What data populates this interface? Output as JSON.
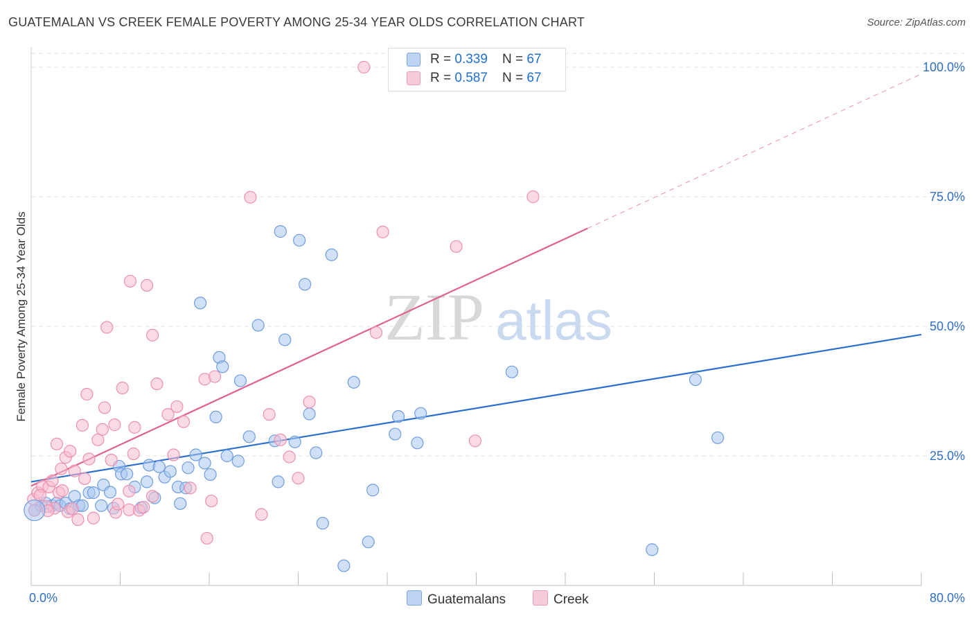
{
  "title": "GUATEMALAN VS CREEK FEMALE POVERTY AMONG 25-34 YEAR OLDS CORRELATION CHART",
  "source": "Source: ZipAtlas.com",
  "watermark": {
    "zip": "ZIP",
    "atlas": "atlas"
  },
  "legend": {
    "rows": [
      {
        "r_label": "R = ",
        "r_value": "0.339",
        "n_label": "N = ",
        "n_value": "67"
      },
      {
        "r_label": "R = ",
        "r_value": "0.587",
        "n_label": "N = ",
        "n_value": "67"
      }
    ]
  },
  "bottom_legend": {
    "series1": "Guatemalans",
    "series2": "Creek"
  },
  "colors": {
    "guatemalans_fill": "#a9c6f0",
    "guatemalans_stroke": "#6e9de0",
    "guatemalans_line": "#2a6fd0",
    "creek_fill": "#f6bdd0",
    "creek_stroke": "#ec8fb0",
    "creek_line": "#e0608e",
    "axis_label": "#2f6fc4",
    "grid": "#e2e2e2"
  },
  "chart_data": {
    "type": "scatter",
    "xlabel": "",
    "ylabel": "Female Poverty Among 25-34 Year Olds",
    "xlim": [
      0,
      80
    ],
    "ylim": [
      0,
      100
    ],
    "x_tick_labels": [
      "0.0%",
      "80.0%"
    ],
    "y_ticks": [
      25,
      50,
      75,
      100
    ],
    "y_tick_labels": [
      "25.0%",
      "50.0%",
      "75.0%",
      "100.0%"
    ],
    "grid": true,
    "legend_position": "top-center",
    "series": [
      {
        "name": "Guatemalans",
        "r": 0.339,
        "n": 67,
        "trend": {
          "x": [
            0,
            80
          ],
          "y": [
            20.0,
            48.4
          ]
        },
        "points": [
          [
            0.3,
            14.5
          ],
          [
            0.9,
            15.4
          ],
          [
            1.3,
            15.9
          ],
          [
            1.9,
            15.4
          ],
          [
            2.3,
            15.9
          ],
          [
            2.6,
            15.4
          ],
          [
            3.1,
            15.9
          ],
          [
            3.9,
            17.2
          ],
          [
            3.5,
            14.8
          ],
          [
            4.3,
            15.4
          ],
          [
            4.6,
            15.4
          ],
          [
            5.2,
            17.9
          ],
          [
            5.6,
            17.9
          ],
          [
            6.3,
            15.4
          ],
          [
            6.5,
            19.4
          ],
          [
            7.1,
            18.0
          ],
          [
            7.4,
            14.9
          ],
          [
            7.9,
            23.0
          ],
          [
            8.1,
            21.5
          ],
          [
            8.6,
            21.5
          ],
          [
            9.3,
            19.0
          ],
          [
            9.9,
            15.0
          ],
          [
            10.4,
            20.0
          ],
          [
            10.6,
            23.2
          ],
          [
            11.1,
            16.9
          ],
          [
            11.5,
            22.9
          ],
          [
            12.0,
            20.9
          ],
          [
            12.5,
            22.0
          ],
          [
            13.2,
            19.0
          ],
          [
            13.4,
            15.8
          ],
          [
            13.9,
            18.8
          ],
          [
            14.1,
            22.7
          ],
          [
            14.8,
            25.2
          ],
          [
            15.2,
            54.5
          ],
          [
            15.6,
            23.6
          ],
          [
            16.1,
            21.4
          ],
          [
            16.6,
            32.5
          ],
          [
            16.9,
            44.0
          ],
          [
            17.2,
            42.2
          ],
          [
            17.6,
            25.0
          ],
          [
            18.6,
            24.0
          ],
          [
            18.8,
            39.5
          ],
          [
            19.6,
            28.7
          ],
          [
            20.4,
            50.2
          ],
          [
            21.9,
            27.9
          ],
          [
            22.2,
            20.0
          ],
          [
            22.4,
            68.3
          ],
          [
            22.8,
            47.4
          ],
          [
            23.7,
            27.7
          ],
          [
            24.1,
            66.6
          ],
          [
            24.6,
            58.1
          ],
          [
            25.0,
            33.1
          ],
          [
            25.6,
            25.6
          ],
          [
            26.2,
            12.0
          ],
          [
            27.0,
            63.8
          ],
          [
            28.1,
            3.8
          ],
          [
            29.0,
            39.2
          ],
          [
            30.3,
            8.4
          ],
          [
            30.7,
            18.4
          ],
          [
            32.7,
            29.2
          ],
          [
            33.0,
            32.6
          ],
          [
            34.7,
            27.5
          ],
          [
            35.0,
            33.2
          ],
          [
            43.2,
            41.2
          ],
          [
            55.8,
            6.9
          ],
          [
            59.7,
            39.7
          ],
          [
            61.7,
            28.5
          ]
        ]
      },
      {
        "name": "Creek",
        "r": 0.587,
        "n": 67,
        "trend": {
          "x": [
            0,
            50
          ],
          "y": [
            19.2,
            68.9
          ]
        },
        "trend_dashed": {
          "x": [
            50,
            80
          ],
          "y": [
            68.9,
            98.7
          ]
        },
        "points": [
          [
            0.2,
            16.6
          ],
          [
            0.6,
            17.9
          ],
          [
            1.0,
            19.1
          ],
          [
            1.6,
            19.0
          ],
          [
            1.9,
            20.2
          ],
          [
            2.1,
            14.9
          ],
          [
            2.3,
            27.3
          ],
          [
            2.5,
            17.9
          ],
          [
            2.7,
            22.5
          ],
          [
            2.8,
            18.3
          ],
          [
            3.1,
            24.7
          ],
          [
            3.3,
            14.2
          ],
          [
            3.5,
            25.9
          ],
          [
            3.7,
            14.8
          ],
          [
            3.9,
            22.1
          ],
          [
            4.2,
            12.7
          ],
          [
            4.6,
            30.9
          ],
          [
            4.8,
            20.6
          ],
          [
            5.0,
            36.9
          ],
          [
            5.2,
            24.4
          ],
          [
            5.6,
            13.0
          ],
          [
            6.0,
            28.1
          ],
          [
            6.4,
            30.1
          ],
          [
            6.6,
            34.3
          ],
          [
            6.8,
            49.8
          ],
          [
            7.2,
            24.2
          ],
          [
            7.5,
            31.0
          ],
          [
            7.6,
            14.1
          ],
          [
            7.8,
            15.7
          ],
          [
            8.2,
            38.1
          ],
          [
            8.8,
            14.6
          ],
          [
            8.8,
            18.2
          ],
          [
            8.9,
            58.7
          ],
          [
            9.2,
            25.4
          ],
          [
            9.3,
            30.5
          ],
          [
            9.7,
            14.5
          ],
          [
            10.1,
            15.1
          ],
          [
            10.4,
            57.9
          ],
          [
            10.9,
            17.2
          ],
          [
            10.9,
            48.3
          ],
          [
            11.3,
            38.9
          ],
          [
            12.3,
            33.0
          ],
          [
            12.8,
            25.2
          ],
          [
            13.1,
            34.5
          ],
          [
            13.7,
            31.6
          ],
          [
            14.3,
            18.8
          ],
          [
            15.6,
            39.8
          ],
          [
            15.8,
            9.1
          ],
          [
            16.2,
            16.3
          ],
          [
            16.5,
            40.3
          ],
          [
            19.7,
            74.9
          ],
          [
            20.7,
            13.7
          ],
          [
            21.4,
            33.0
          ],
          [
            22.4,
            28.1
          ],
          [
            23.2,
            24.8
          ],
          [
            24.0,
            20.7
          ],
          [
            25.0,
            35.4
          ],
          [
            29.9,
            100
          ],
          [
            31.0,
            48.8
          ],
          [
            31.6,
            68.2
          ],
          [
            38.2,
            65.4
          ],
          [
            39.9,
            27.9
          ],
          [
            45.1,
            75.0
          ],
          [
            0.3,
            14.5
          ],
          [
            1.4,
            15.2
          ],
          [
            0.8,
            17.4
          ],
          [
            1.5,
            14.4
          ]
        ]
      }
    ]
  }
}
